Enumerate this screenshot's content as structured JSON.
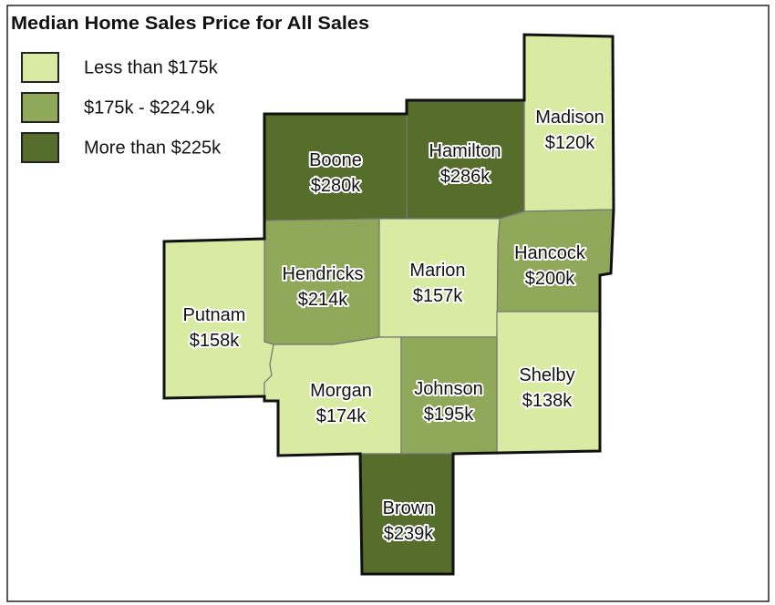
{
  "title": "Median Home Sales Price for All Sales",
  "legend": [
    {
      "label": "Less than $175k",
      "color": "#d9eba2"
    },
    {
      "label": "$175k - $224.9k",
      "color": "#8fa85a"
    },
    {
      "label": "More than $225k",
      "color": "#566d2b"
    }
  ],
  "counties": [
    {
      "name": "Madison",
      "price": "$120k",
      "color": "#d9eba2"
    },
    {
      "name": "Boone",
      "price": "$280k",
      "color": "#566d2b"
    },
    {
      "name": "Hamilton",
      "price": "$286k",
      "color": "#566d2b"
    },
    {
      "name": "Hancock",
      "price": "$200k",
      "color": "#8fa85a"
    },
    {
      "name": "Hendricks",
      "price": "$214k",
      "color": "#8fa85a"
    },
    {
      "name": "Marion",
      "price": "$157k",
      "color": "#d9eba2"
    },
    {
      "name": "Putnam",
      "price": "$158k",
      "color": "#d9eba2"
    },
    {
      "name": "Shelby",
      "price": "$138k",
      "color": "#d9eba2"
    },
    {
      "name": "Morgan",
      "price": "$174k",
      "color": "#d9eba2"
    },
    {
      "name": "Johnson",
      "price": "$195k",
      "color": "#8fa85a"
    },
    {
      "name": "Brown",
      "price": "$239k",
      "color": "#566d2b"
    }
  ]
}
